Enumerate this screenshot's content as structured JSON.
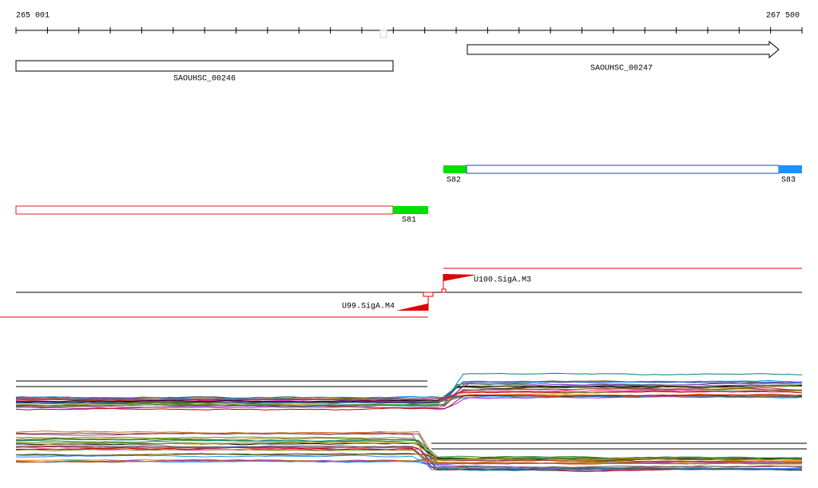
{
  "axis": {
    "start_label": "265 001",
    "end_label": "267 500"
  },
  "genes": [
    {
      "label": "SAOUHSC_00246"
    },
    {
      "label": "SAOUHSC_00247"
    }
  ],
  "segments": [
    {
      "label": "S82"
    },
    {
      "label": "S83"
    },
    {
      "label": "S81"
    }
  ],
  "promoters": [
    {
      "label": "U100.SigA.M3"
    },
    {
      "label": "U99.SigA.M4"
    }
  ]
}
